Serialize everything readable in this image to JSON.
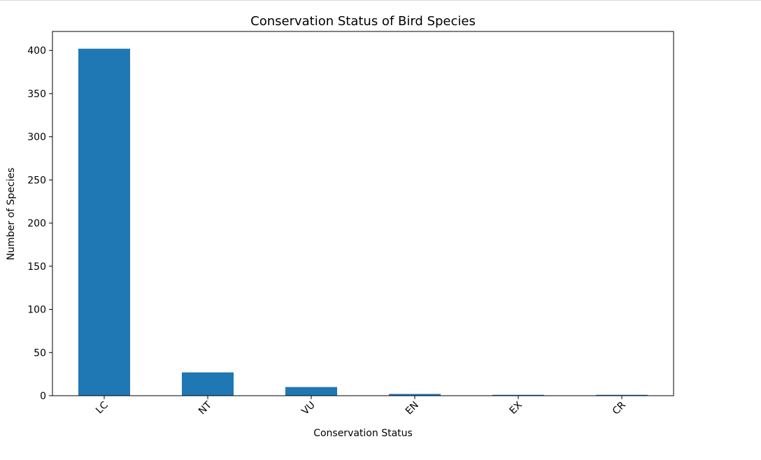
{
  "chart_data": {
    "type": "bar",
    "title": "Conservation Status of Bird Species",
    "xlabel": "Conservation Status",
    "ylabel": "Number of Species",
    "categories": [
      "LC",
      "NT",
      "VU",
      "EN",
      "EX",
      "CR"
    ],
    "values": [
      402,
      27,
      10,
      2,
      1,
      1
    ],
    "ylim": [
      0,
      422
    ],
    "yticks": [
      0,
      50,
      100,
      150,
      200,
      250,
      300,
      350,
      400
    ],
    "ytick_labels": [
      "0",
      "50",
      "100",
      "150",
      "200",
      "250",
      "300",
      "350",
      "400"
    ],
    "grid": false,
    "legend": "none",
    "bar_color": "#1f77b4",
    "xtick_rotation": "45 degrees"
  }
}
